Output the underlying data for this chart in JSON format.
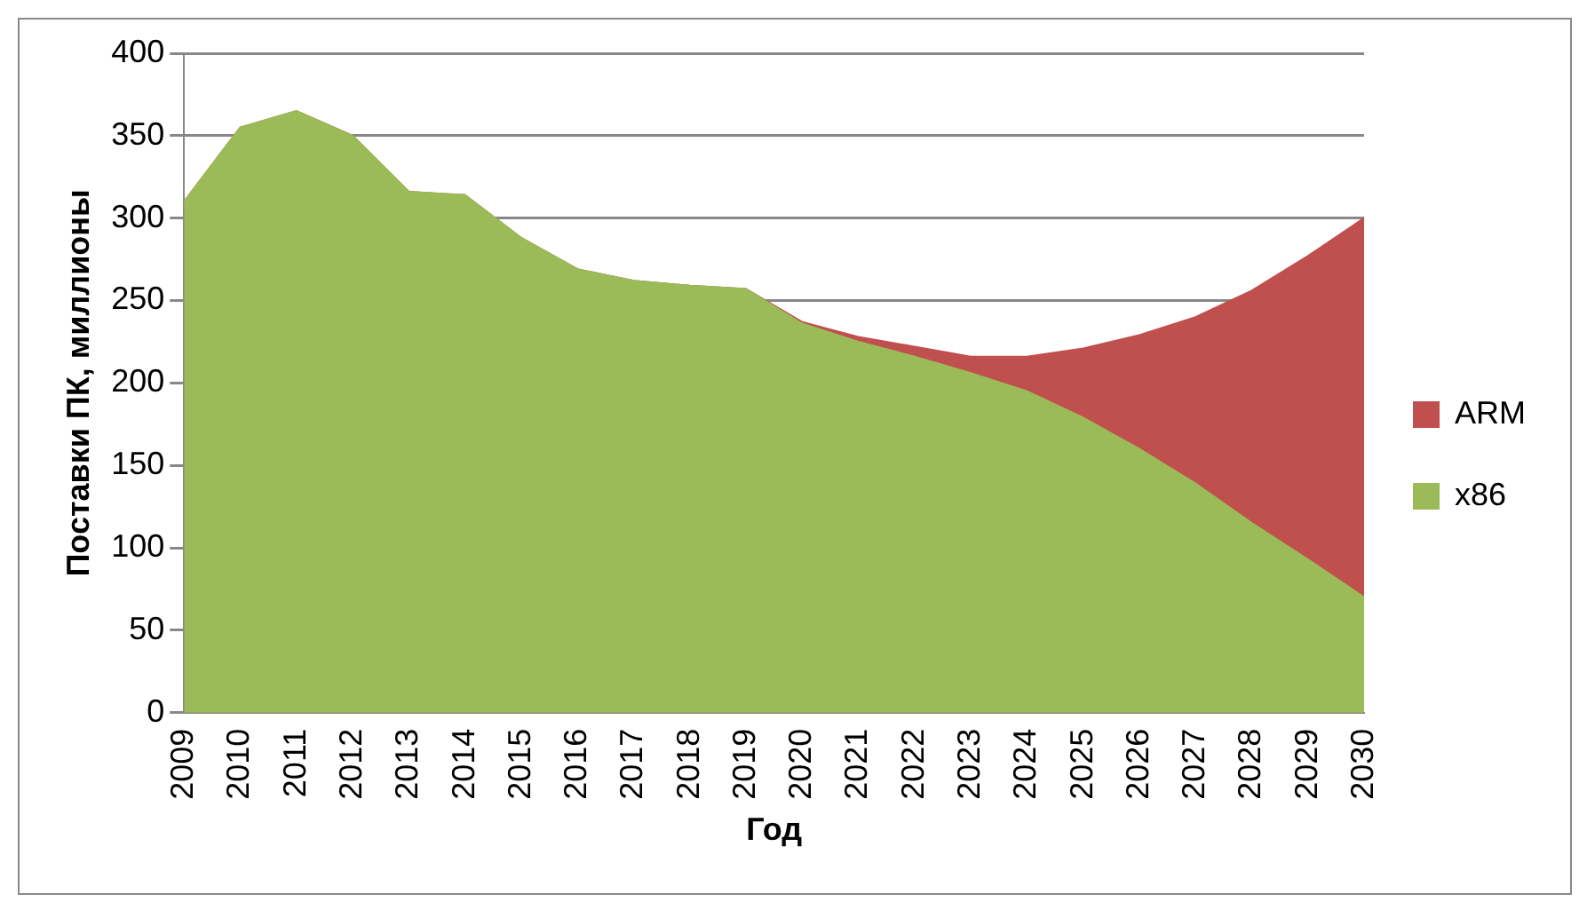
{
  "chart_data": {
    "type": "area",
    "stacked": true,
    "xlabel": "Год",
    "ylabel": "Поставки ПК, миллионы",
    "categories": [
      "2009",
      "2010",
      "2011",
      "2012",
      "2013",
      "2014",
      "2015",
      "2016",
      "2017",
      "2018",
      "2019",
      "2020",
      "2021",
      "2022",
      "2023",
      "2024",
      "2025",
      "2026",
      "2027",
      "2028",
      "2029",
      "2030"
    ],
    "series": [
      {
        "name": "x86",
        "color": "#9bbb59",
        "values": [
          310,
          355,
          365,
          350,
          316,
          314,
          288,
          269,
          262,
          259,
          257,
          236,
          225,
          216,
          206,
          195,
          179,
          160,
          139,
          115,
          93,
          70
        ]
      },
      {
        "name": "ARM",
        "color": "#c0504d",
        "values": [
          0,
          0,
          0,
          0,
          0,
          0,
          0,
          0,
          0,
          0,
          0,
          1,
          3,
          6,
          10,
          21,
          42,
          69,
          101,
          141,
          184,
          230
        ]
      }
    ],
    "ylim": [
      0,
      400
    ],
    "yticks": [
      0,
      50,
      100,
      150,
      200,
      250,
      300,
      350,
      400
    ],
    "grid": "y",
    "legend": "right"
  }
}
